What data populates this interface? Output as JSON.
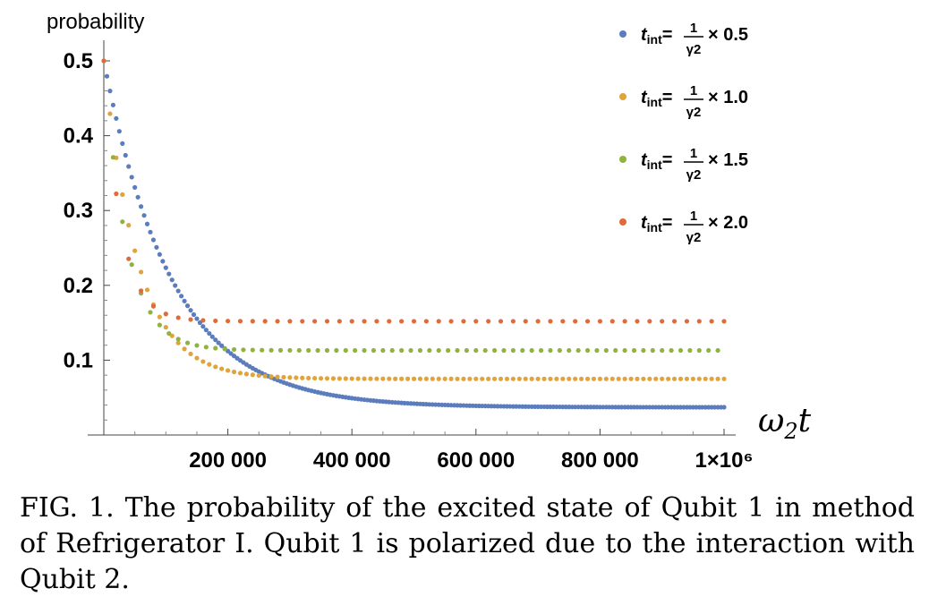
{
  "chart_data": {
    "type": "scatter",
    "ylabel": "probability",
    "xlabel": "ω₂t",
    "xlim": [
      0,
      1000000
    ],
    "ylim": [
      0.0,
      0.5
    ],
    "x_ticks": [
      200000,
      400000,
      600000,
      800000,
      1000000
    ],
    "x_tick_labels": [
      "200 000",
      "400 000",
      "600 000",
      "800 000",
      "1×10⁶"
    ],
    "y_ticks": [
      0.1,
      0.2,
      0.3,
      0.4,
      0.5
    ],
    "y_tick_labels": [
      "0.1",
      "0.2",
      "0.3",
      "0.4",
      "0.5"
    ],
    "grid": false,
    "legend_position": "top-right",
    "series": [
      {
        "name": "t_int = 1/γ2 × 0.5",
        "factor": "0.5",
        "color": "#5b7cbd",
        "x_step": 5000,
        "start": 0.5,
        "end": 0.037,
        "decay_scale": 110000
      },
      {
        "name": "t_int = 1/γ2 × 1.0",
        "factor": "1.0",
        "color": "#e0a43a",
        "x_step": 10000,
        "start": 0.5,
        "end": 0.075,
        "decay_scale": 55000
      },
      {
        "name": "t_int = 1/γ2 × 1.5",
        "factor": "1.5",
        "color": "#8fb33e",
        "x_step": 15000,
        "start": 0.5,
        "end": 0.113,
        "decay_scale": 37000
      },
      {
        "name": "t_int = 1/γ2 × 2.0",
        "factor": "2.0",
        "color": "#e06a3c",
        "x_step": 20000,
        "start": 0.5,
        "end": 0.152,
        "decay_scale": 28000
      }
    ]
  },
  "caption": "FIG. 1.  The probability of the excited state of Qubit 1 in method of Refrigerator I. Qubit 1 is polarized due to the interaction with Qubit 2."
}
